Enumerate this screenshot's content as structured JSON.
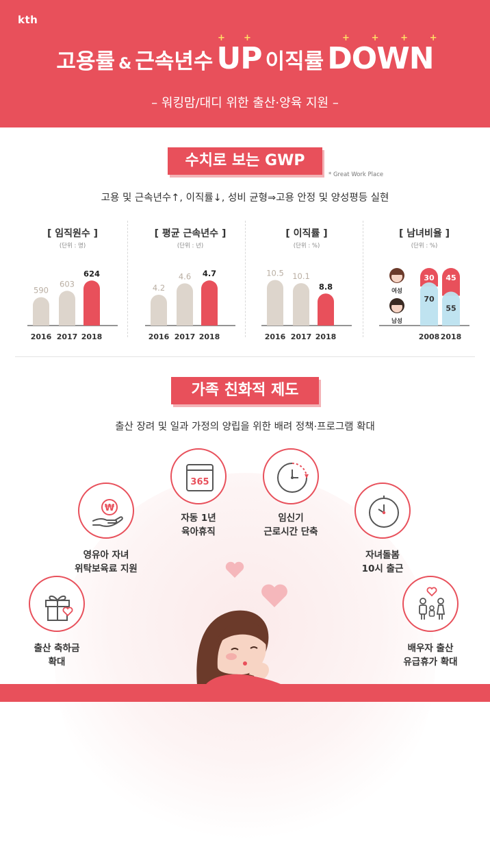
{
  "header": {
    "brand": "kth",
    "title_part1": "고용률",
    "title_amp": "&",
    "title_part2": "근속년수",
    "title_up": "UP",
    "title_part3": "이직률",
    "title_down": "DOWN",
    "subtitle": "– 워킹맘/대디 위한 출산·양육 지원 –"
  },
  "gwp": {
    "title": "수치로 보는 GWP",
    "note": "* Great Work Place",
    "description": "고용 및 근속년수↑, 이직률↓, 성비 균형⇒고용 안정 및 양성평등 실현"
  },
  "chart_data": [
    {
      "type": "bar",
      "title": "[ 임직원수 ]",
      "unit": "(단위 : 명)",
      "categories": [
        "2016",
        "2017",
        "2018"
      ],
      "values": [
        590,
        603,
        624
      ],
      "highlight_color": "#e8505b",
      "base_color": "#ddd5cc"
    },
    {
      "type": "bar",
      "title": "[ 평균 근속년수 ]",
      "unit": "(단위 : 년)",
      "categories": [
        "2016",
        "2017",
        "2018"
      ],
      "values": [
        4.2,
        4.6,
        4.7
      ],
      "highlight_color": "#e8505b",
      "base_color": "#ddd5cc"
    },
    {
      "type": "bar",
      "title": "[ 이직률 ]",
      "unit": "(단위 : %)",
      "categories": [
        "2016",
        "2017",
        "2018"
      ],
      "values": [
        10.5,
        10.1,
        8.8
      ],
      "highlight_color": "#e8505b",
      "base_color": "#ddd5cc"
    },
    {
      "type": "bar",
      "title": "[ 남녀비율 ]",
      "unit": "(단위 : %)",
      "categories": [
        "2008",
        "2018"
      ],
      "series": [
        {
          "name": "여성",
          "values": [
            30,
            45
          ],
          "color": "#e8505b"
        },
        {
          "name": "남성",
          "values": [
            70,
            55
          ],
          "color": "#bfe3ef"
        }
      ]
    }
  ],
  "family": {
    "title": "가족 친화적 제도",
    "description": "출산 장려 및 일과 가정의 양립을 위한 배려 정책·프로그램 확대",
    "features": [
      {
        "icon": "gift-icon",
        "line1": "출산 축하금",
        "line2": "확대"
      },
      {
        "icon": "hand-coin-icon",
        "line1": "영유아 자녀",
        "line2": "위탁보육료 지원"
      },
      {
        "icon": "calendar-365-icon",
        "line1": "자동 1년",
        "line2": "육아휴직",
        "calendar_text": "365"
      },
      {
        "icon": "clock-arrow-icon",
        "line1": "임신기",
        "line2": "근로시간 단축"
      },
      {
        "icon": "clock-icon",
        "line1": "자녀돌봄",
        "line2": "10시 출근"
      },
      {
        "icon": "family-icon",
        "line1": "배우자 출산",
        "line2": "유급휴가 확대"
      }
    ]
  },
  "colors": {
    "brand_red": "#e8505b",
    "pink_light": "#f5b7bb",
    "beige": "#ddd5cc",
    "light_blue": "#bfe3ef",
    "sparkle": "#ffe066"
  }
}
